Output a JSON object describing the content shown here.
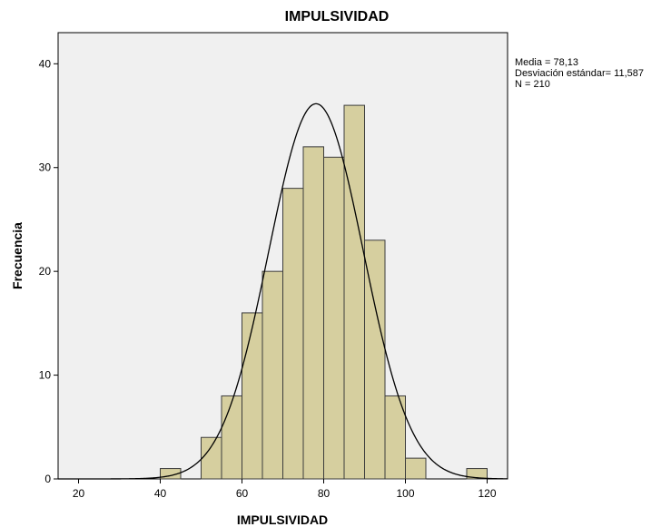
{
  "chart_data": {
    "type": "bar",
    "title": "IMPULSIVIDAD",
    "xlabel": "IMPULSIVIDAD",
    "ylabel": "Frecuencia",
    "xlim": [
      15,
      125
    ],
    "ylim": [
      0,
      43
    ],
    "xticks": [
      20,
      40,
      60,
      80,
      100,
      120
    ],
    "yticks": [
      0,
      10,
      20,
      30,
      40
    ],
    "bin_width": 5,
    "bins": [
      {
        "start": 40,
        "end": 45,
        "count": 1
      },
      {
        "start": 45,
        "end": 50,
        "count": 0
      },
      {
        "start": 50,
        "end": 55,
        "count": 4
      },
      {
        "start": 55,
        "end": 60,
        "count": 8
      },
      {
        "start": 60,
        "end": 65,
        "count": 16
      },
      {
        "start": 65,
        "end": 70,
        "count": 20
      },
      {
        "start": 70,
        "end": 75,
        "count": 28
      },
      {
        "start": 75,
        "end": 80,
        "count": 32
      },
      {
        "start": 80,
        "end": 85,
        "count": 31
      },
      {
        "start": 85,
        "end": 90,
        "count": 36
      },
      {
        "start": 90,
        "end": 95,
        "count": 23
      },
      {
        "start": 95,
        "end": 100,
        "count": 8
      },
      {
        "start": 100,
        "end": 105,
        "count": 2
      },
      {
        "start": 105,
        "end": 110,
        "count": 0
      },
      {
        "start": 110,
        "end": 115,
        "count": 0
      },
      {
        "start": 115,
        "end": 120,
        "count": 1
      }
    ],
    "normal_curve": {
      "mean": 78.13,
      "sd": 11.587,
      "n": 210
    },
    "stats_text": [
      "Media = 78,13",
      "Desviación estándar= 11,587",
      "N = 210"
    ],
    "legend_position": "top-right outside plot",
    "grid": false,
    "colors": {
      "bar_fill": "#d6cf9f",
      "bar_stroke": "#3c3c3c",
      "plot_bg": "#f0f0f0",
      "curve": "#000000"
    }
  }
}
